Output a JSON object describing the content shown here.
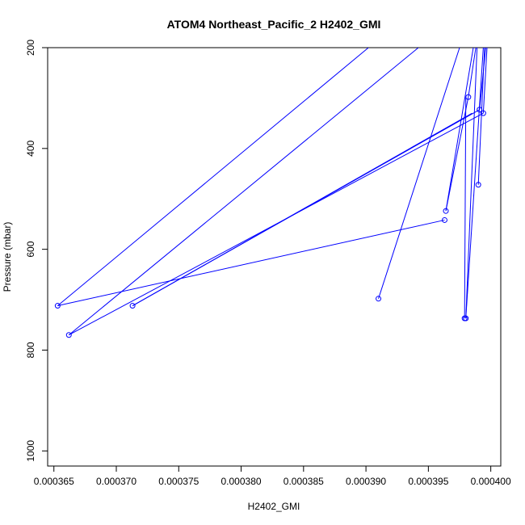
{
  "chart_data": {
    "type": "line",
    "title": "ATOM4 Northeast_Pacific_2 H2402_GMI",
    "xlabel": "H2402_GMI",
    "ylabel": "Pressure (mbar)",
    "xlim": [
      0.0003645,
      0.0004008
    ],
    "ylim": [
      1030,
      200
    ],
    "y_reversed": true,
    "grid": false,
    "x_ticks": [
      {
        "value": 0.000365,
        "label": "0.000365"
      },
      {
        "value": 0.00037,
        "label": "0.000370"
      },
      {
        "value": 0.000375,
        "label": "0.000375"
      },
      {
        "value": 0.00038,
        "label": "0.000380"
      },
      {
        "value": 0.000385,
        "label": "0.000385"
      },
      {
        "value": 0.00039,
        "label": "0.000390"
      },
      {
        "value": 0.000395,
        "label": "0.000395"
      },
      {
        "value": 0.0004,
        "label": "0.000400"
      }
    ],
    "y_ticks": [
      {
        "value": 200,
        "label": "200"
      },
      {
        "value": 400,
        "label": "400"
      },
      {
        "value": 600,
        "label": "600"
      },
      {
        "value": 800,
        "label": "800"
      },
      {
        "value": 1000,
        "label": "1000"
      }
    ],
    "series": [
      {
        "color": "#0000ff",
        "points": [
          {
            "x": 0.0003653,
            "y": 712
          },
          {
            "x": 0.0003963,
            "y": 542
          },
          {
            "x": 0.0003991,
            "y": 323
          },
          {
            "x": 0.0003662,
            "y": 770
          },
          {
            "x": 0.0003964,
            "y": 524
          },
          {
            "x": 0.0003994,
            "y": 330
          },
          {
            "x": 0.0003713,
            "y": 712
          },
          {
            "x": 0.0003982,
            "y": 298
          },
          {
            "x": 0.000391,
            "y": 698
          },
          {
            "x": 0.000398,
            "y": 737
          },
          {
            "x": 0.000399,
            "y": 472
          },
          {
            "x": 0.0003979,
            "y": 737
          }
        ],
        "lines": [
          {
            "x1": 0.0003653,
            "y1": 712,
            "x2": 0.0003963,
            "y2": 542
          },
          {
            "x1": 0.0003653,
            "y1": 712,
            "x2": 0.0003902,
            "y2": 200
          },
          {
            "x1": 0.0003662,
            "y1": 770,
            "x2": 0.0003994,
            "y2": 330
          },
          {
            "x1": 0.0003662,
            "y1": 770,
            "x2": 0.0003942,
            "y2": 200
          },
          {
            "x1": 0.0003713,
            "y1": 712,
            "x2": 0.0003991,
            "y2": 323
          },
          {
            "x1": 0.0003713,
            "y1": 712,
            "x2": 0.0003985,
            "y2": 330
          },
          {
            "x1": 0.000391,
            "y1": 698,
            "x2": 0.0003975,
            "y2": 200
          },
          {
            "x1": 0.0003964,
            "y1": 524,
            "x2": 0.0003982,
            "y2": 298
          },
          {
            "x1": 0.0003964,
            "y1": 524,
            "x2": 0.0003986,
            "y2": 200
          },
          {
            "x1": 0.0003979,
            "y1": 737,
            "x2": 0.000398,
            "y2": 298
          },
          {
            "x1": 0.000398,
            "y1": 737,
            "x2": 0.0003989,
            "y2": 200
          },
          {
            "x1": 0.000398,
            "y1": 737,
            "x2": 0.0003994,
            "y2": 200
          },
          {
            "x1": 0.000399,
            "y1": 472,
            "x2": 0.0003995,
            "y2": 200
          },
          {
            "x1": 0.0003991,
            "y1": 323,
            "x2": 0.0003996,
            "y2": 200
          },
          {
            "x1": 0.0003982,
            "y1": 298,
            "x2": 0.0003988,
            "y2": 200
          },
          {
            "x1": 0.0003994,
            "y1": 330,
            "x2": 0.0003997,
            "y2": 200
          }
        ]
      }
    ]
  }
}
